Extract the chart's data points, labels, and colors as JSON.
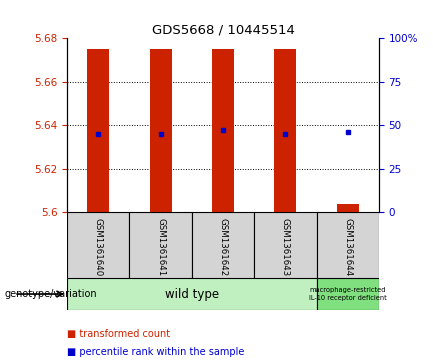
{
  "title": "GDS5668 / 10445514",
  "samples": [
    "GSM1361640",
    "GSM1361641",
    "GSM1361642",
    "GSM1361643",
    "GSM1361644"
  ],
  "bar_bottom": [
    5.6,
    5.6,
    5.6,
    5.6,
    5.6
  ],
  "bar_top": [
    5.675,
    5.675,
    5.675,
    5.675,
    5.604
  ],
  "blue_y": [
    5.636,
    5.636,
    5.638,
    5.636,
    5.637
  ],
  "ylim": [
    5.6,
    5.68
  ],
  "yticks_left": [
    5.6,
    5.62,
    5.64,
    5.66,
    5.68
  ],
  "yticks_right_labels": [
    "0",
    "25",
    "50",
    "75",
    "100%"
  ],
  "yticks_right_pct": [
    0,
    25,
    50,
    75,
    100
  ],
  "bar_color": "#cc2200",
  "blue_color": "#0000cc",
  "bar_width": 0.35,
  "plot_bg": "#ffffff",
  "sample_label_bg": "#d4d4d4",
  "genotype_label": "genotype/variation",
  "wildtype_label": "wild type",
  "wildtype_color": "#c0f0c0",
  "macro_label": "macrophage-restricted\nIL-10 receptor deficient",
  "macro_color": "#80e080",
  "legend_red": "transformed count",
  "legend_blue": "percentile rank within the sample",
  "title_color": "#000000",
  "left_tick_color": "#cc2200",
  "right_tick_color": "#0000cc",
  "grid_dotted_at": [
    5.62,
    5.64,
    5.66
  ]
}
